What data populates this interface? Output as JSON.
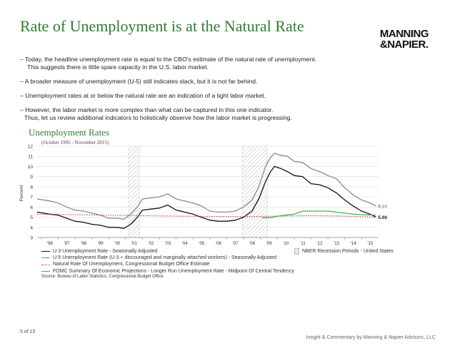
{
  "title": "Rate of Unemployment is at the Natural Rate",
  "logo": {
    "line1": "MANNING",
    "line2": "&NAPIER."
  },
  "bullets": [
    {
      "line1": "– Today, the headline unemployment rate is equal to the CBO’s estimate of the natural rate of unemployment.",
      "line2": "This suggests there is little spare capacity in the U.S. labor market."
    },
    {
      "line1": "– A broader measure of unemployment (U-5) still indicates slack, but it is not far behind.",
      "line2": ""
    },
    {
      "line1": "– Unemployment rates at or below the natural rate are an indication of a tight labor market.",
      "line2": ""
    },
    {
      "line1": "– However, the labor market is more complex than what can be captured in this one indicator.",
      "line2": "Thus, let us review additional indicators to holistically observe how the labor market is progressing."
    }
  ],
  "chart_title": "Unemployment Rates",
  "page_number": "5 of 15",
  "footer": "Insight & Commentary by Manning & Napier Advisors, LLC",
  "chart_data": {
    "type": "line",
    "subtitle": "(October 1995 - November 2015)",
    "ylabel": "Percent",
    "xlabel": "",
    "ylim": [
      3,
      12
    ],
    "xlim": [
      1995.75,
      2016.0
    ],
    "yticks": [
      "3",
      "4",
      "5",
      "6",
      "7",
      "8",
      "9",
      "10",
      "11",
      "12"
    ],
    "xticks": [
      "'96",
      "'97",
      "'98",
      "'99",
      "'00",
      "'01",
      "'02",
      "'03",
      "'04",
      "'05",
      "'06",
      "'07",
      "'08",
      "'09",
      "'10",
      "'11",
      "'12",
      "'13",
      "'14",
      "'15"
    ],
    "grid": true,
    "recessions": [
      [
        2001.17,
        2001.83
      ],
      [
        2007.92,
        2009.42
      ]
    ],
    "end_labels": [
      "6.10",
      "5.00"
    ],
    "series": [
      {
        "name": "U-3 Unemployment Rate - Seasonally Adjusted",
        "color": "#111111",
        "style": "solid",
        "x": [
          1995.75,
          1996.5,
          1997.0,
          1997.5,
          1998.0,
          1998.5,
          1999.0,
          1999.5,
          2000.0,
          2000.5,
          2000.9,
          2001.3,
          2001.7,
          2002.0,
          2002.5,
          2003.0,
          2003.5,
          2004.0,
          2004.5,
          2005.0,
          2005.5,
          2006.0,
          2006.5,
          2007.0,
          2007.5,
          2008.0,
          2008.5,
          2008.9,
          2009.3,
          2009.6,
          2009.83,
          2010.2,
          2010.6,
          2011.0,
          2011.5,
          2012.0,
          2012.5,
          2013.0,
          2013.5,
          2014.0,
          2014.5,
          2015.0,
          2015.5,
          2015.85
        ],
        "values": [
          5.5,
          5.3,
          5.2,
          4.9,
          4.6,
          4.5,
          4.3,
          4.2,
          4.0,
          4.0,
          3.9,
          4.3,
          5.0,
          5.7,
          5.8,
          5.9,
          6.2,
          5.7,
          5.5,
          5.3,
          5.0,
          4.7,
          4.6,
          4.6,
          4.7,
          5.0,
          5.6,
          6.8,
          8.5,
          9.5,
          10.0,
          9.8,
          9.5,
          9.1,
          9.0,
          8.3,
          8.2,
          7.9,
          7.4,
          6.7,
          6.1,
          5.6,
          5.3,
          5.0
        ]
      },
      {
        "name": "U-5 Unemployment Rate (U-3 + discouraged and marginally attached workers) - Seasonally Adjusted",
        "color": "#8a8a8a",
        "style": "solid",
        "x": [
          1995.75,
          1996.5,
          1997.0,
          1997.5,
          1998.0,
          1998.5,
          1999.0,
          1999.5,
          2000.0,
          2000.5,
          2000.9,
          2001.3,
          2001.7,
          2002.0,
          2002.5,
          2003.0,
          2003.5,
          2004.0,
          2004.5,
          2005.0,
          2005.5,
          2006.0,
          2006.5,
          2007.0,
          2007.5,
          2008.0,
          2008.5,
          2008.9,
          2009.3,
          2009.6,
          2009.83,
          2010.2,
          2010.6,
          2011.0,
          2011.5,
          2012.0,
          2012.5,
          2013.0,
          2013.5,
          2014.0,
          2014.5,
          2015.0,
          2015.5,
          2015.85
        ],
        "values": [
          6.8,
          6.6,
          6.4,
          6.0,
          5.7,
          5.6,
          5.4,
          5.2,
          4.9,
          4.9,
          4.8,
          5.3,
          6.0,
          6.8,
          6.9,
          7.0,
          7.3,
          6.8,
          6.6,
          6.4,
          6.1,
          5.6,
          5.5,
          5.5,
          5.6,
          6.0,
          6.7,
          8.0,
          10.0,
          10.9,
          11.3,
          11.1,
          11.0,
          10.5,
          10.4,
          9.8,
          9.5,
          9.1,
          8.8,
          7.9,
          7.2,
          6.7,
          6.4,
          6.1
        ]
      },
      {
        "name": "Natural Rate Of Unemployment, Congressional Budget Office Estimate",
        "color": "#c0304a",
        "style": "dotted",
        "x": [
          1995.75,
          2000.0,
          2004.0,
          2008.0,
          2010.0,
          2012.0,
          2014.0,
          2015.85
        ],
        "values": [
          5.3,
          5.2,
          5.1,
          5.05,
          5.1,
          5.15,
          5.1,
          5.0
        ]
      },
      {
        "name": "FOMC Summary Of Economic Projections - Longer Run Unemployment Rate - Midpoint Of Central Tendency",
        "color": "#4caf50",
        "style": "solid",
        "x": [
          2009.1,
          2009.6,
          2010.0,
          2010.5,
          2011.0,
          2011.5,
          2012.0,
          2012.5,
          2013.0,
          2013.5,
          2014.0,
          2014.5,
          2015.0,
          2015.85
        ],
        "values": [
          4.95,
          4.95,
          5.1,
          5.2,
          5.3,
          5.6,
          5.6,
          5.6,
          5.6,
          5.5,
          5.4,
          5.3,
          5.25,
          5.2
        ]
      }
    ],
    "legend_recession": "NBER Recession Periods - United States",
    "source": "Source: Bureau of Labor Statistics, Congressional Budget Office"
  }
}
